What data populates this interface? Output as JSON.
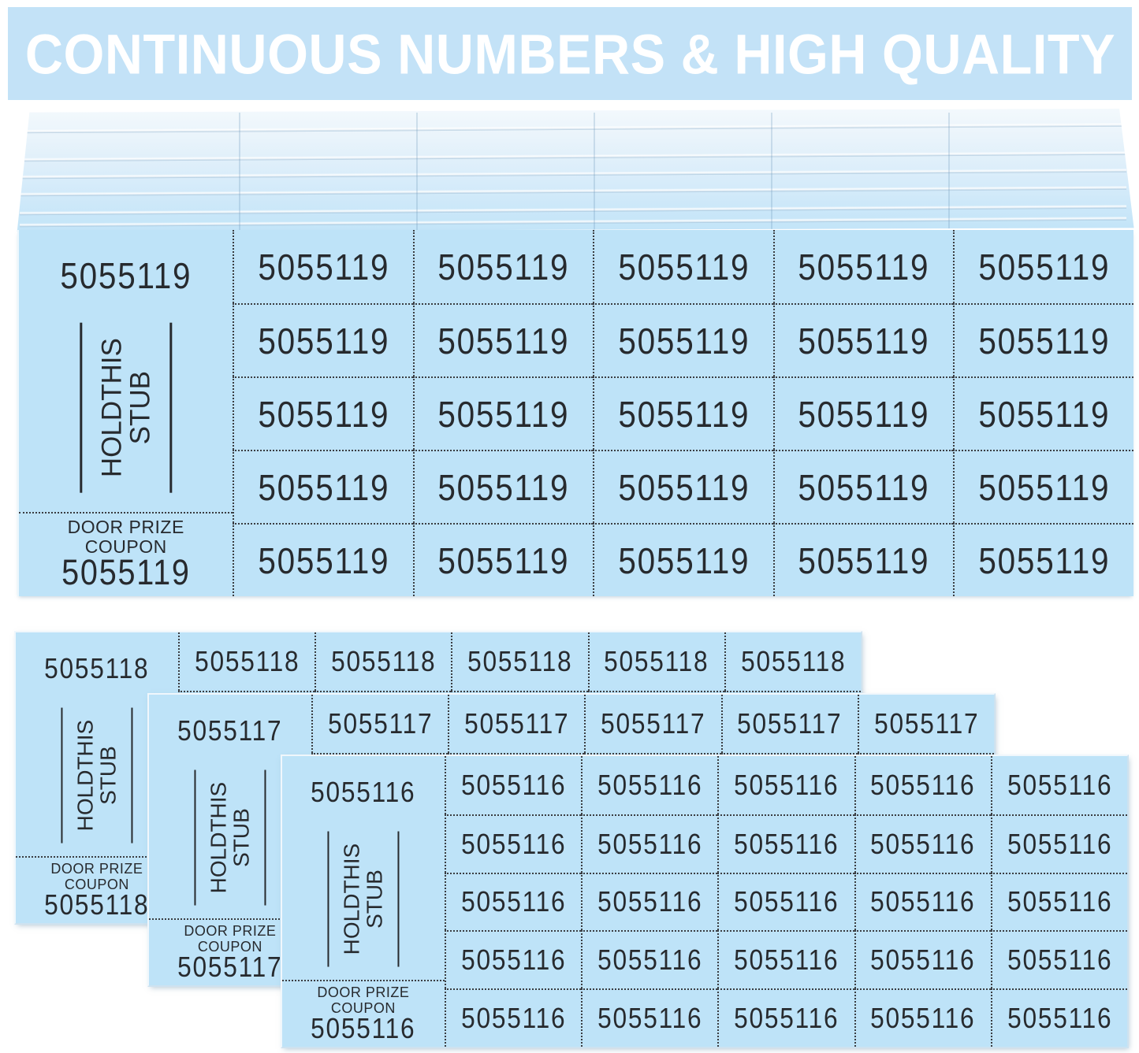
{
  "banner": {
    "text": "CONTINUOUS NUMBERS & HIGH QUALITY",
    "background": "#c3e2f7",
    "text_color": "#ffffff"
  },
  "stub_labels": {
    "hold_line1": "HOLDTHIS",
    "hold_line2": "STUB",
    "coupon_line1": "DOOR PRIZE",
    "coupon_line2": "COUPON"
  },
  "sheets": [
    {
      "name": "ticket-sheet-5055119-stack-top",
      "number": "5055119",
      "rows": 5,
      "cols": 5
    },
    {
      "name": "ticket-sheet-5055118",
      "number": "5055118",
      "rows": 5,
      "cols": 5
    },
    {
      "name": "ticket-sheet-5055117",
      "number": "5055117",
      "rows": 5,
      "cols": 5
    },
    {
      "name": "ticket-sheet-5055116",
      "number": "5055116",
      "rows": 5,
      "cols": 5
    }
  ],
  "colors": {
    "ticket_blue": "#bee3f8",
    "ink": "#272a2e",
    "background": "#ffffff"
  }
}
